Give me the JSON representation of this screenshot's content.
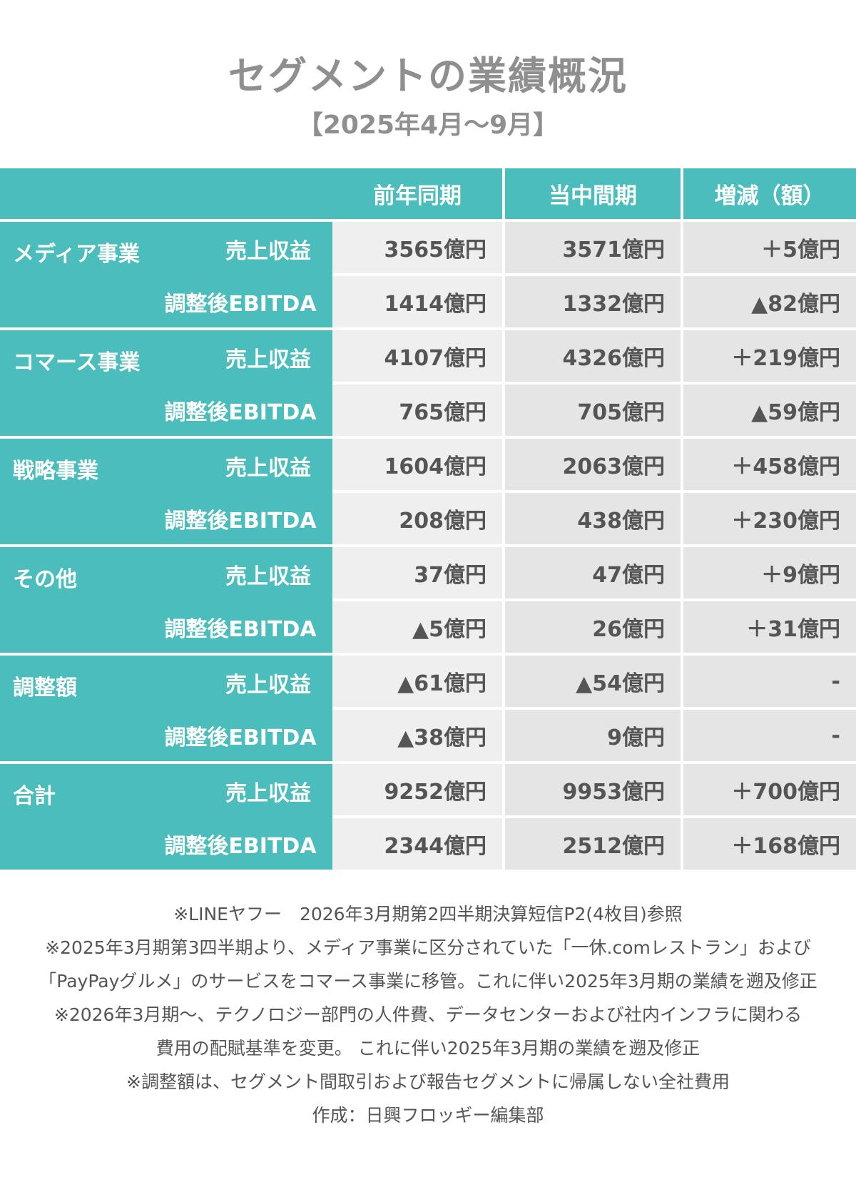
{
  "title": "セグメントの業績概況",
  "subtitle": "【2025年4月〜9月】",
  "table": {
    "headers": [
      "前年同期",
      "当中間期",
      "増減（額）"
    ],
    "metric_labels": [
      "売上収益",
      "調整後EBITDA"
    ],
    "segments": [
      {
        "name": "メディア事業",
        "rows": [
          [
            "3565億円",
            "3571億円",
            "＋5億円"
          ],
          [
            "1414億円",
            "1332億円",
            "▲82億円"
          ]
        ]
      },
      {
        "name": "コマース事業",
        "rows": [
          [
            "4107億円",
            "4326億円",
            "＋219億円"
          ],
          [
            "765億円",
            "705億円",
            "▲59億円"
          ]
        ]
      },
      {
        "name": "戦略事業",
        "rows": [
          [
            "1604億円",
            "2063億円",
            "＋458億円"
          ],
          [
            "208億円",
            "438億円",
            "＋230億円"
          ]
        ]
      },
      {
        "name": "その他",
        "rows": [
          [
            "37億円",
            "47億円",
            "＋9億円"
          ],
          [
            "▲5億円",
            "26億円",
            "＋31億円"
          ]
        ]
      },
      {
        "name": "調整額",
        "rows": [
          [
            "▲61億円",
            "▲54億円",
            "-"
          ],
          [
            "▲38億円",
            "9億円",
            "-"
          ]
        ]
      },
      {
        "name": "合計",
        "rows": [
          [
            "9252億円",
            "9953億円",
            "＋700億円"
          ],
          [
            "2344億円",
            "2512億円",
            "＋168億円"
          ]
        ]
      }
    ]
  },
  "notes": [
    "※LINEヤフー　2026年3月期第2四半期決算短信P2(4枚目)参照",
    "※2025年3月期第3四半期より、メディア事業に区分されていた「一休.comレストラン」および",
    "「PayPayグルメ」のサービスをコマース事業に移管。これに伴い2025年3月期の業績を遡及修正",
    "※2026年3月期〜、テクノロジー部門の人件費、データセンターおよび社内インフラに関わる",
    "費用の配賦基準を変更。 これに伴い2025年3月期の業績を遡及修正",
    "※調整額は、セグメント間取引および報告セグメントに帰属しない全社費用",
    "作成：日興フロッギー編集部"
  ]
}
